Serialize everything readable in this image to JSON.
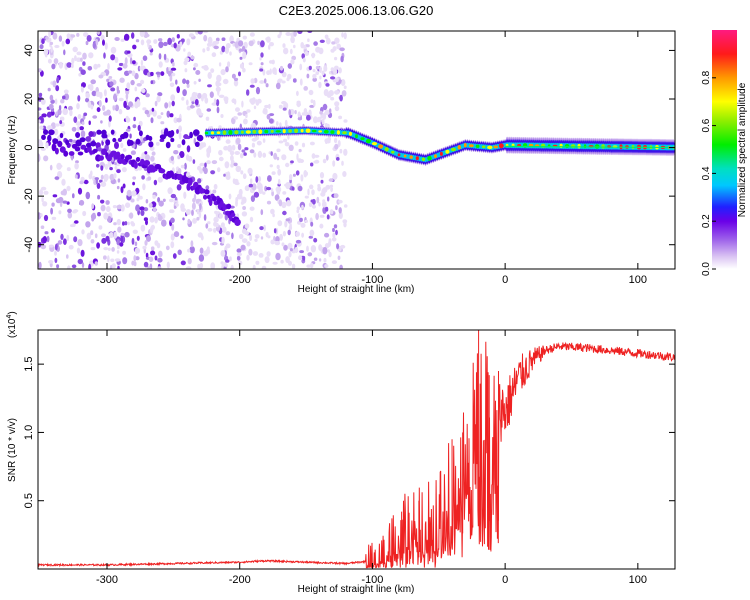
{
  "title": "C2E3.2025.006.13.06.G20",
  "chart_data": [
    {
      "type": "heatmap",
      "xlabel": "Height of straight line (km)",
      "ylabel": "Frequency (Hz)",
      "xlim": [
        -352,
        128
      ],
      "ylim": [
        -50,
        48
      ],
      "xticks": [
        -300,
        -200,
        -100,
        0,
        100
      ],
      "yticks": [
        -40,
        -20,
        0,
        20,
        40
      ],
      "colorbar": {
        "label": "Normalized spectral amplitude",
        "range": [
          0,
          1
        ],
        "ticks": [
          0.0,
          0.2,
          0.4,
          0.6,
          0.8
        ],
        "tick_labels": [
          "0.0",
          "0.2",
          "0.4",
          "0.6",
          "0.8"
        ]
      },
      "features": {
        "noise_region_x": [
          -352,
          -120
        ],
        "main_ridge": [
          {
            "x": -225,
            "y": 6
          },
          {
            "x": -150,
            "y": 7
          },
          {
            "x": -118,
            "y": 6
          },
          {
            "x": -100,
            "y": 2
          },
          {
            "x": -80,
            "y": -3
          },
          {
            "x": -60,
            "y": -5
          },
          {
            "x": -45,
            "y": -2
          },
          {
            "x": -30,
            "y": 1
          },
          {
            "x": -10,
            "y": 0
          },
          {
            "x": 0,
            "y": 1
          },
          {
            "x": 128,
            "y": 0
          }
        ],
        "descending_branch": [
          {
            "x": -340,
            "y": 0
          },
          {
            "x": -300,
            "y": -3
          },
          {
            "x": -270,
            "y": -7
          },
          {
            "x": -240,
            "y": -15
          },
          {
            "x": -215,
            "y": -23
          },
          {
            "x": -200,
            "y": -30
          }
        ]
      }
    },
    {
      "type": "line",
      "xlabel": "Height of straight line (km)",
      "ylabel": "SNR (10 * v/v)",
      "scale_note": "(x10",
      "scale_exp": "4",
      "xlim": [
        -352,
        128
      ],
      "ylim": [
        0,
        1.75
      ],
      "xticks": [
        -300,
        -200,
        -100,
        0,
        100
      ],
      "yticks": [
        0.5,
        1.0,
        1.5
      ],
      "ytick_labels": [
        "0.5",
        "1.0",
        "1.5"
      ],
      "color": "#ee2222",
      "series": [
        {
          "x": [
            -352,
            -300,
            -250,
            -200,
            -180,
            -150,
            -120,
            -100,
            -90,
            -80,
            -70,
            -60,
            -50,
            -45,
            -40,
            -35,
            -30,
            -25,
            -20,
            -15,
            -10,
            -5,
            0,
            10,
            20,
            30,
            40,
            60,
            80,
            100,
            128
          ],
          "y": [
            0.03,
            0.03,
            0.04,
            0.05,
            0.06,
            0.05,
            0.04,
            0.06,
            0.12,
            0.25,
            0.32,
            0.25,
            0.35,
            0.42,
            0.58,
            0.75,
            0.95,
            1.05,
            1.15,
            1.15,
            1.18,
            1.18,
            1.15,
            1.4,
            1.52,
            1.6,
            1.63,
            1.62,
            1.6,
            1.58,
            1.55
          ]
        }
      ],
      "spikes": [
        {
          "x": -92,
          "y": 0.2
        },
        {
          "x": -78,
          "y": 0.42
        },
        {
          "x": -65,
          "y": 0.5
        },
        {
          "x": -52,
          "y": 0.38
        },
        {
          "x": -40,
          "y": 0.95
        },
        {
          "x": -32,
          "y": 1.0
        },
        {
          "x": -20,
          "y": 1.75
        },
        {
          "x": -12,
          "y": 1.42
        },
        {
          "x": -5,
          "y": 1.45
        }
      ]
    }
  ]
}
